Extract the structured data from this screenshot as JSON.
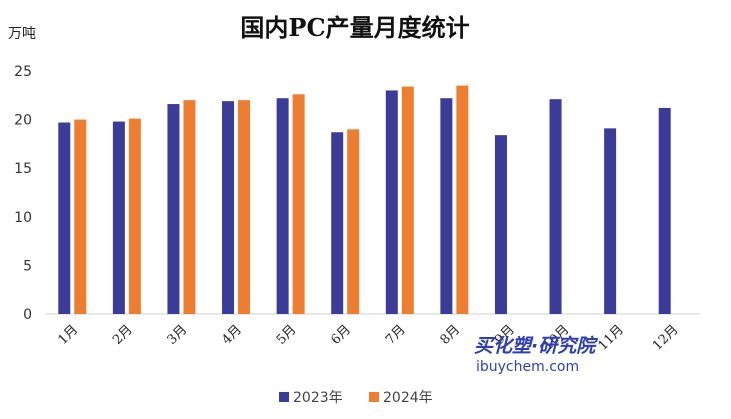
{
  "chart_data": {
    "type": "bar",
    "title": "国内PC产量月度统计",
    "ylabel": "万吨",
    "xlabel": "",
    "ylim": [
      0,
      25
    ],
    "yticks": [
      0,
      5,
      10,
      15,
      20,
      25
    ],
    "grid": false,
    "legend_position": "bottom",
    "categories": [
      "1月",
      "2月",
      "3月",
      "4月",
      "5月",
      "6月",
      "7月",
      "8月",
      "9月",
      "10月",
      "11月",
      "12月"
    ],
    "series": [
      {
        "name": "2023年",
        "color": "#3b3b98",
        "values": [
          19.7,
          19.8,
          21.6,
          21.9,
          22.2,
          18.7,
          23.0,
          22.2,
          18.4,
          22.1,
          19.1,
          21.2
        ]
      },
      {
        "name": "2024年",
        "color": "#ed7d31",
        "values": [
          20.0,
          20.1,
          22.0,
          22.0,
          22.6,
          19.0,
          23.4,
          23.5,
          null,
          null,
          null,
          null
        ]
      }
    ]
  },
  "watermark": {
    "cn": "买化塑·研究院",
    "en": "ibuychem.com"
  }
}
